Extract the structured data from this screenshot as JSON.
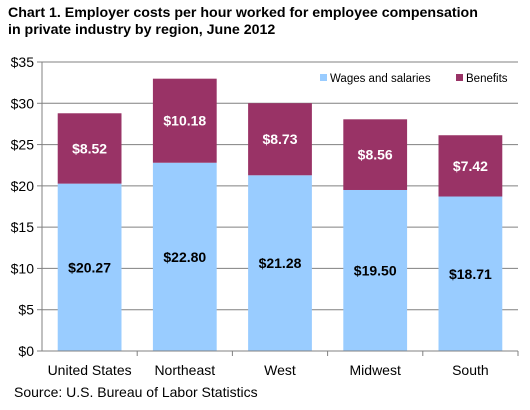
{
  "title_line1": "Chart 1. Employer costs per hour worked  for employee compensation",
  "title_line2": "in private industry by region, June 2012",
  "source": "Source:  U.S. Bureau  of Labor Statistics",
  "colors": {
    "wages": "#99ccff",
    "benefits": "#993366",
    "grid": "#808080",
    "axis": "#808080"
  },
  "chart_data": {
    "type": "bar",
    "stacked": true,
    "categories": [
      "United States",
      "Northeast",
      "West",
      "Midwest",
      "South"
    ],
    "series": [
      {
        "name": "Wages and salaries",
        "values": [
          20.27,
          22.8,
          21.28,
          19.5,
          18.71
        ],
        "labels": [
          "$20.27",
          "$22.80",
          "$21.28",
          "$19.50",
          "$18.71"
        ]
      },
      {
        "name": "Benefits",
        "values": [
          8.52,
          10.18,
          8.73,
          8.56,
          7.42
        ],
        "labels": [
          "$8.52",
          "$10.18",
          "$8.73",
          "$8.56",
          "$7.42"
        ]
      }
    ],
    "ylim": [
      0,
      35
    ],
    "yticks": [
      0,
      5,
      10,
      15,
      20,
      25,
      30,
      35
    ],
    "ytick_labels": [
      "$0",
      "$5",
      "$10",
      "$15",
      "$20",
      "$25",
      "$30",
      "$35"
    ],
    "grid": true,
    "legend_position": "top-right",
    "xlabel": "",
    "ylabel": ""
  }
}
